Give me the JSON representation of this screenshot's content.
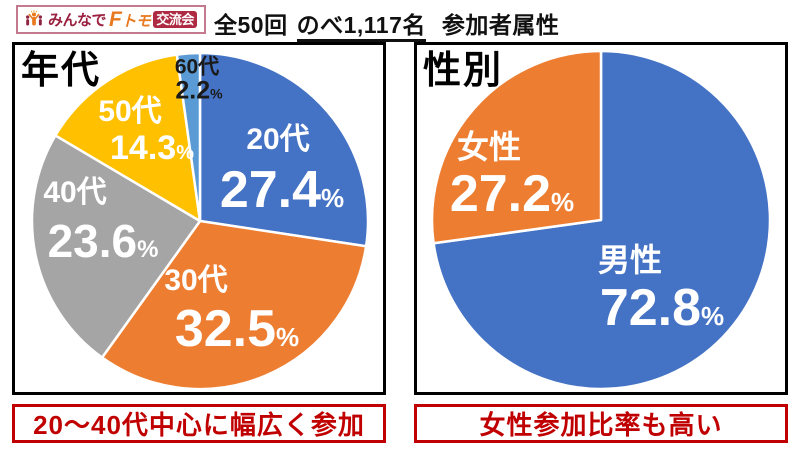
{
  "header": {
    "logo": {
      "icon": "people-group-icon",
      "text_main": "みんなで",
      "text_brand_f": "F",
      "text_brand_rest": "トモ",
      "text_badge": "交流会",
      "border_color": "#c4798f",
      "color_main": "#9a2240",
      "color_brand": "#e8791e",
      "badge_bg": "#ad2a42"
    },
    "title": {
      "run_count": "全50回",
      "run_total": "のべ1,117名",
      "run_label": "参加者属性"
    }
  },
  "chart_data": [
    {
      "type": "pie",
      "title": "年代",
      "labels": [
        "20代",
        "30代",
        "40代",
        "50代",
        "60代"
      ],
      "values": [
        27.4,
        32.5,
        23.6,
        14.3,
        2.2
      ],
      "unit": "%",
      "colors": [
        "#4472c4",
        "#ed7d31",
        "#a5a5a5",
        "#ffc000",
        "#5b9bd5"
      ],
      "label_colors": [
        "#ffffff",
        "#ffffff",
        "#ffffff",
        "#ffffff",
        "#1a1a1a"
      ],
      "start_angle_deg": 0,
      "direction": "clockwise",
      "slice_border_color": "#ffffff"
    },
    {
      "type": "pie",
      "title": "性別",
      "labels": [
        "男性",
        "女性"
      ],
      "values": [
        72.8,
        27.2
      ],
      "unit": "%",
      "colors": [
        "#4472c4",
        "#ed7d31"
      ],
      "label_colors": [
        "#ffffff",
        "#ffffff"
      ],
      "start_angle_deg": 0,
      "direction": "clockwise",
      "slice_border_color": "#ffffff"
    }
  ],
  "captions": {
    "left": "20〜40代中心に幅広く参加",
    "right": "女性参加比率も高い",
    "color": "#c00000"
  }
}
